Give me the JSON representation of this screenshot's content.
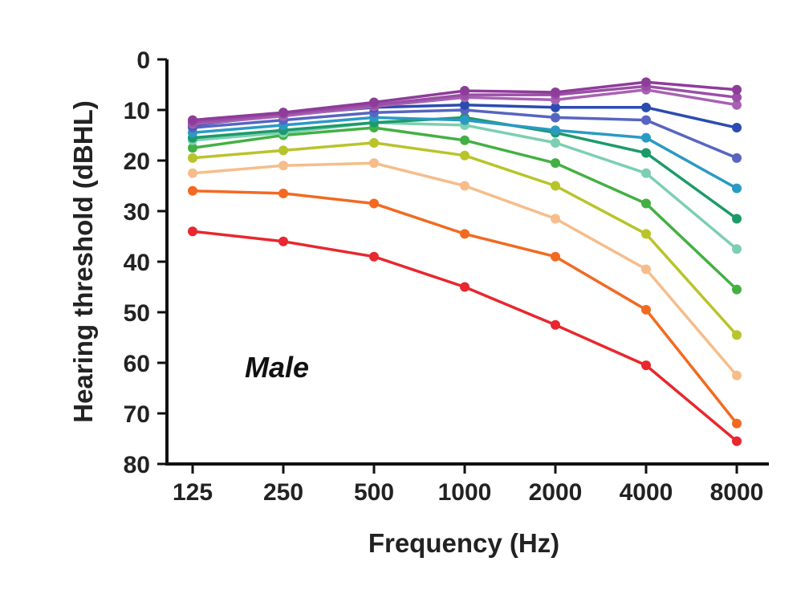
{
  "chart_data": {
    "type": "line",
    "title": "",
    "xlabel": "Frequency (Hz)",
    "ylabel": "Hearing threshold (dBHL)",
    "annotation": "Male",
    "categories": [
      "125",
      "250",
      "500",
      "1000",
      "2000",
      "4000",
      "8000"
    ],
    "y_ticks": [
      "0",
      "10",
      "20",
      "30",
      "40",
      "50",
      "60",
      "70",
      "80"
    ],
    "ylim": [
      0,
      80
    ],
    "y_inverted": true,
    "grid": false,
    "legend": "none",
    "series": [
      {
        "name": "series-1",
        "color": "#8e3c9a",
        "values": [
          12,
          10.5,
          8.5,
          6.2,
          6.5,
          4.5,
          6
        ]
      },
      {
        "name": "series-2",
        "color": "#9a4fa6",
        "values": [
          12.5,
          10.8,
          9,
          7,
          7,
          5.3,
          7.5
        ]
      },
      {
        "name": "series-3",
        "color": "#a862b2",
        "values": [
          12.8,
          11.2,
          9.3,
          7.5,
          8,
          6,
          9
        ]
      },
      {
        "name": "series-4",
        "color": "#2a4bb0",
        "values": [
          13,
          11,
          9.5,
          9,
          9.5,
          9.5,
          13.5
        ]
      },
      {
        "name": "series-5",
        "color": "#5765c0",
        "values": [
          13.5,
          12,
          10.5,
          10,
          11.5,
          12,
          19.5
        ]
      },
      {
        "name": "series-6",
        "color": "#2a9ac4",
        "values": [
          14.5,
          13,
          11.5,
          12,
          14,
          15.5,
          25.5
        ]
      },
      {
        "name": "series-7",
        "color": "#1d9a6a",
        "values": [
          15.5,
          14,
          12.5,
          11.5,
          14.5,
          18.5,
          31.5
        ]
      },
      {
        "name": "series-8",
        "color": "#7ccfb0",
        "values": [
          16,
          14.5,
          12.5,
          13,
          16.5,
          22.5,
          37.5
        ]
      },
      {
        "name": "series-9",
        "color": "#43b043",
        "values": [
          17.5,
          15,
          13.5,
          16,
          20.5,
          28.5,
          45.5
        ]
      },
      {
        "name": "series-10",
        "color": "#b8c42a",
        "values": [
          19.5,
          18,
          16.5,
          19,
          25,
          34.5,
          54.5
        ]
      },
      {
        "name": "series-11",
        "color": "#f6bd8a",
        "values": [
          22.5,
          21,
          20.5,
          25,
          31.5,
          41.5,
          62.5
        ]
      },
      {
        "name": "series-12",
        "color": "#f26a22",
        "values": [
          26,
          26.5,
          28.5,
          34.5,
          39,
          49.5,
          72
        ]
      },
      {
        "name": "series-13",
        "color": "#e8272e",
        "values": [
          34,
          36,
          39,
          45,
          52.5,
          60.5,
          75.5
        ]
      }
    ]
  }
}
